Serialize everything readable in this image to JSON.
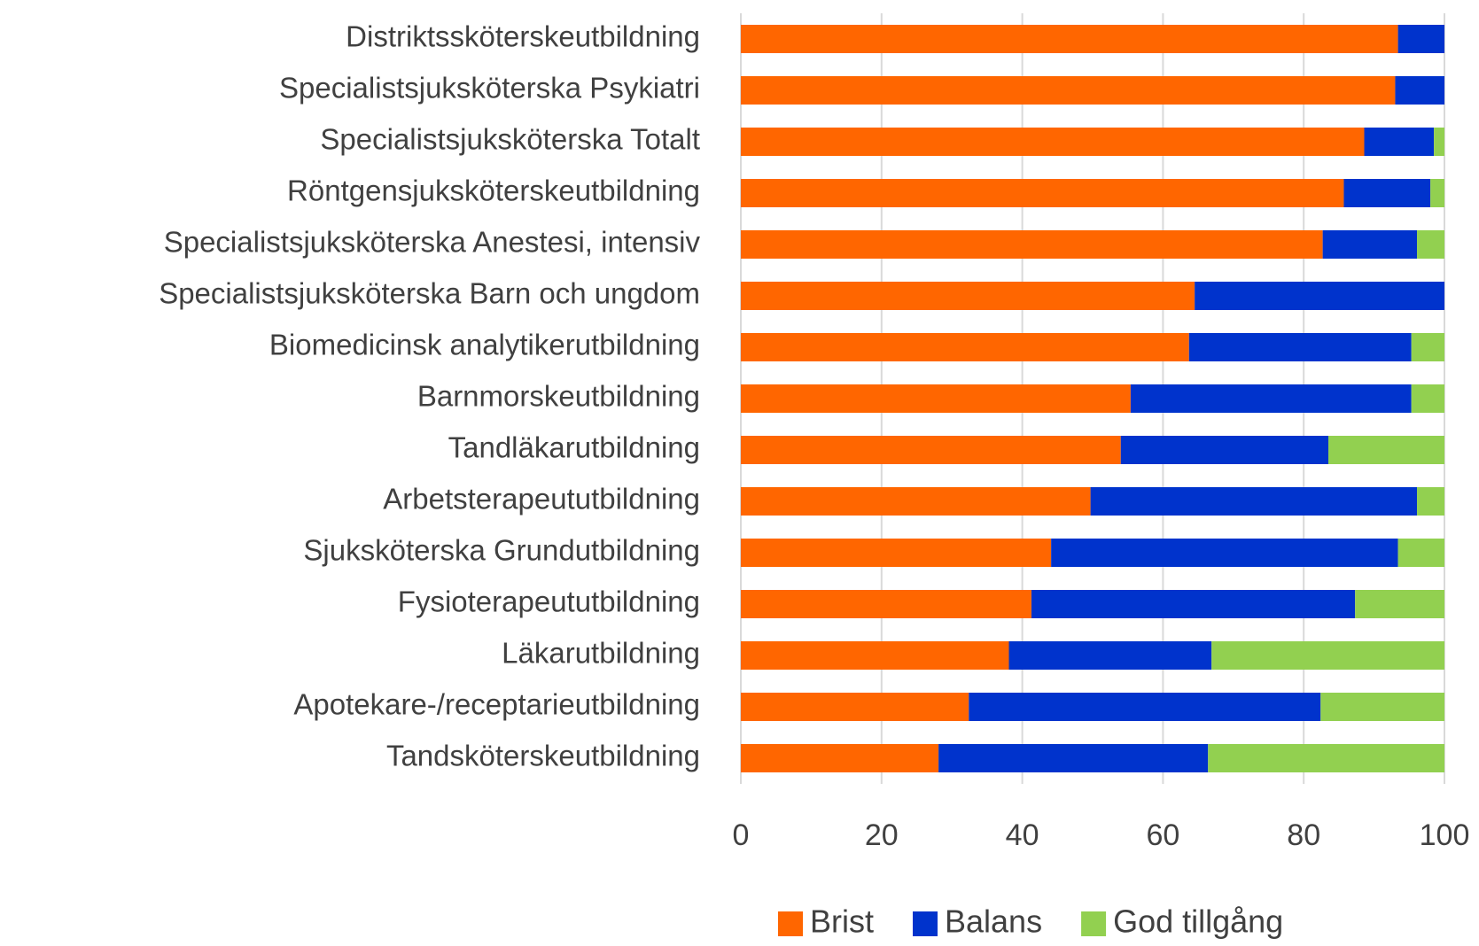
{
  "chart_data": {
    "type": "stacked-barh",
    "categories": [
      "Distriktssköterskeutbildning",
      "Specialistsjuksköterska Psykiatri",
      "Specialistsjuksköterska Totalt",
      "Röntgensjuksköterskeutbildning",
      "Specialistsjuksköterska Anestesi, intensiv",
      "Specialistsjuksköterska Barn och ungdom",
      "Biomedicinsk analytikerutbildning",
      "Barnmorskeutbildning",
      "Tandläkarutbildning",
      "Arbetsterapeututbildning",
      "Sjuksköterska Grundutbildning",
      "Fysioterapeututbildning",
      "Läkarutbildning",
      "Apotekare-/receptarieutbildning",
      "Tandsköterskeutbildning"
    ],
    "series": [
      {
        "name": "Brist",
        "color": "#ff6600",
        "values": [
          93.4,
          93,
          88.6,
          85.7,
          82.7,
          64.5,
          63.7,
          55.4,
          54,
          49.7,
          44.1,
          41.3,
          38.1,
          32.4,
          28.1
        ]
      },
      {
        "name": "Balans",
        "color": "#0033cc",
        "values": [
          6.6,
          7,
          9.9,
          12.3,
          13.4,
          35.5,
          31.6,
          39.9,
          29.5,
          46.4,
          49.3,
          46,
          28.8,
          50,
          38.3
        ]
      },
      {
        "name": "God tillgång",
        "color": "#92d050",
        "values": [
          0,
          0,
          1.5,
          2,
          3.9,
          0,
          4.7,
          4.7,
          16.5,
          3.9,
          6.6,
          12.7,
          33.1,
          17.6,
          33.6
        ]
      }
    ],
    "xlim": [
      0,
      100
    ],
    "xticks": [
      0,
      20,
      40,
      60,
      80,
      100
    ],
    "grid": true,
    "legend": "bottom"
  }
}
